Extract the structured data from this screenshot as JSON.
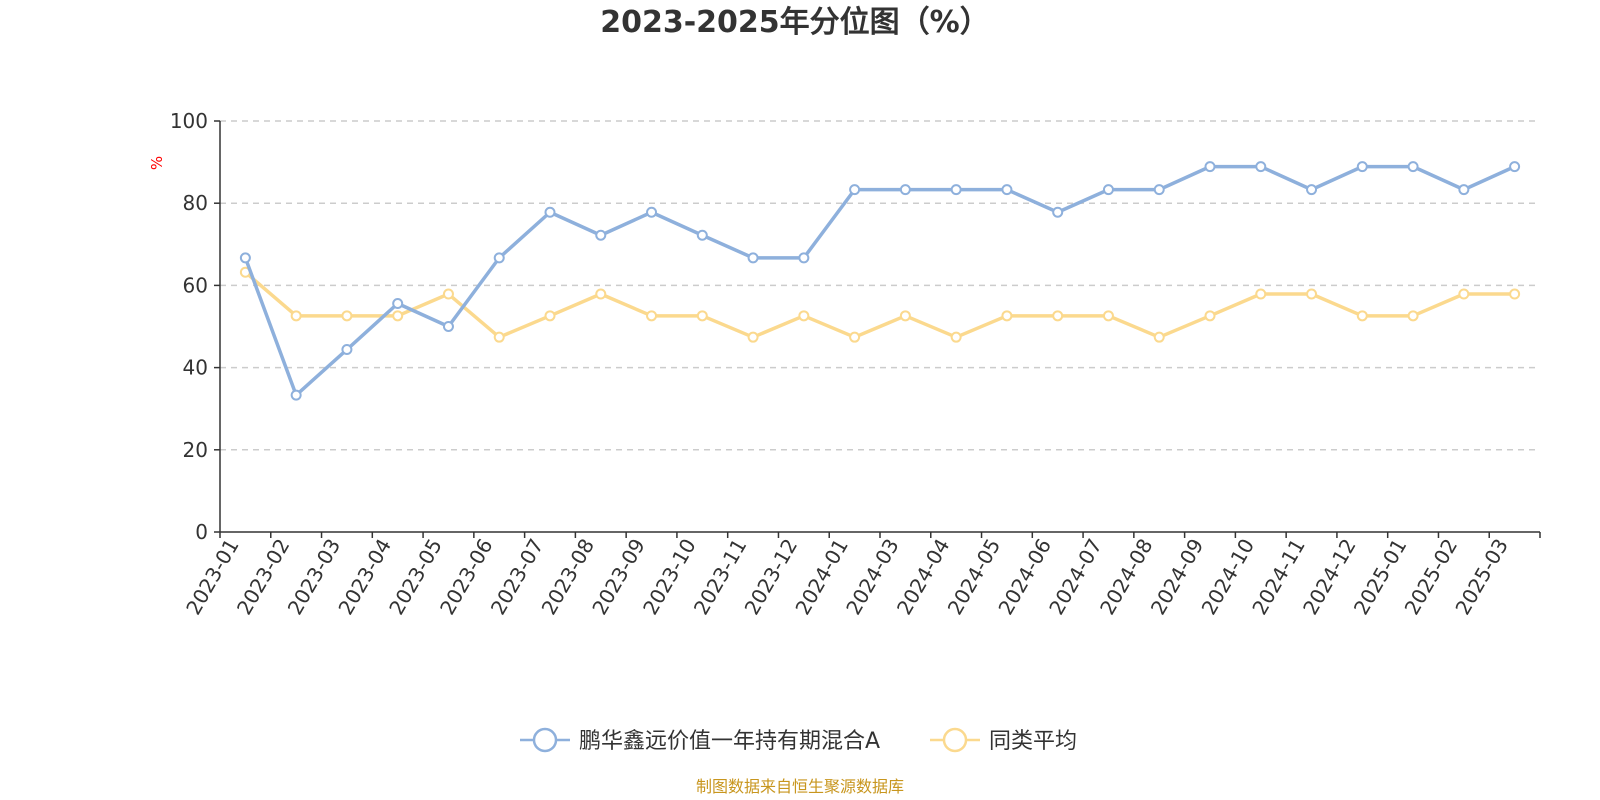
{
  "chart_data": {
    "type": "line",
    "title": "2023-2025年分位图（%）",
    "y_unit": "%",
    "ylim": [
      0,
      100
    ],
    "y_ticks": [
      0,
      20,
      40,
      60,
      80,
      100
    ],
    "grid": true,
    "legend_position": "bottom",
    "x": [
      "2023-01",
      "2023-02",
      "2023-03",
      "2023-04",
      "2023-05",
      "2023-06",
      "2023-07",
      "2023-08",
      "2023-09",
      "2023-10",
      "2023-11",
      "2023-12",
      "2024-01",
      "2024-03",
      "2024-04",
      "2024-05",
      "2024-06",
      "2024-07",
      "2024-08",
      "2024-09",
      "2024-10",
      "2024-11",
      "2024-12",
      "2025-01",
      "2025-02",
      "2025-03"
    ],
    "series": [
      {
        "name": "鹏华鑫远价值一年持有期混合A",
        "color": "#8eb0dc",
        "values": [
          66.7,
          33.3,
          44.4,
          55.6,
          50.0,
          66.7,
          77.8,
          72.2,
          77.8,
          72.2,
          66.7,
          66.7,
          83.3,
          83.3,
          83.3,
          83.3,
          77.8,
          83.3,
          83.3,
          88.9,
          88.9,
          83.3,
          88.9,
          88.9,
          83.3,
          88.9
        ]
      },
      {
        "name": "同类平均",
        "color": "#fbd98e",
        "values": [
          63.2,
          52.6,
          52.6,
          52.6,
          57.9,
          47.4,
          52.6,
          57.9,
          52.6,
          52.6,
          47.4,
          52.6,
          47.4,
          52.6,
          47.4,
          52.6,
          52.6,
          52.6,
          47.4,
          52.6,
          57.9,
          57.9,
          52.6,
          52.6,
          57.9,
          57.9
        ]
      }
    ]
  },
  "footer": {
    "source": "制图数据来自恒生聚源数据库"
  }
}
